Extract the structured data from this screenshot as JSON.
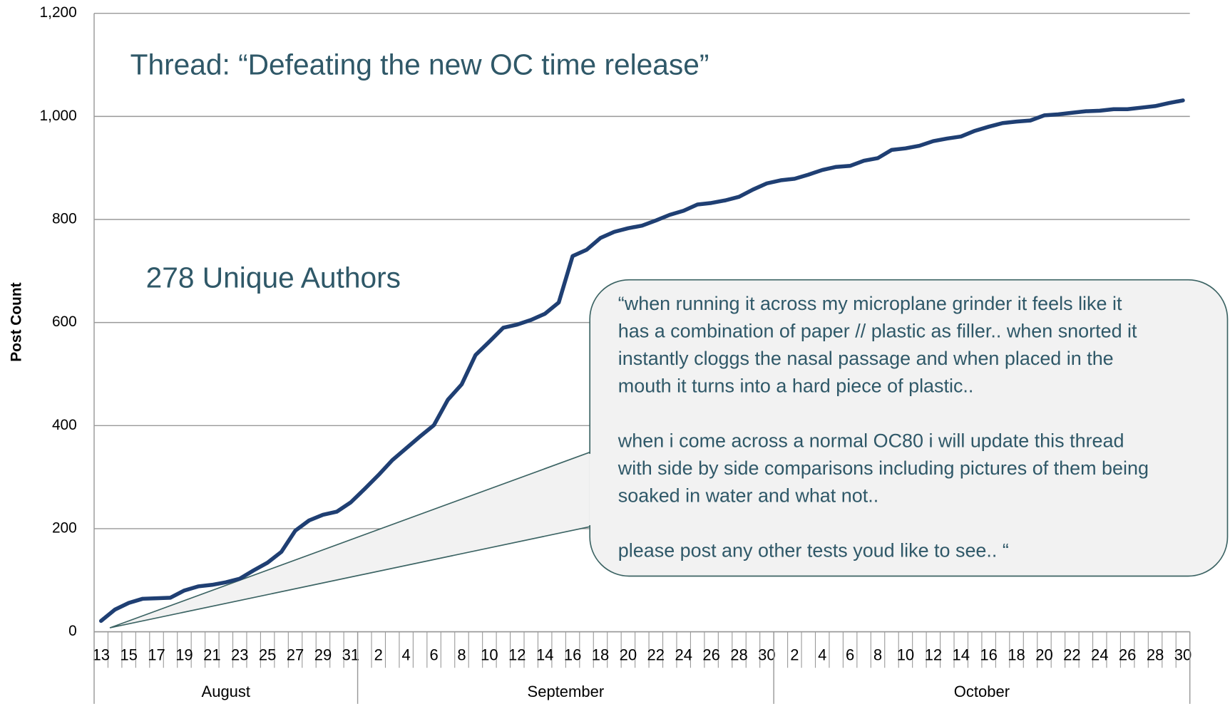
{
  "chart_data": {
    "type": "line",
    "title": "Thread: “Defeating the new OC time release”",
    "y_label": "Post Count",
    "annotations": [
      "278 Unique Authors"
    ],
    "callout": [
      [
        "“when running it across my microplane grinder it feels like it",
        "has a combination of paper // plastic as filler.. when snorted it",
        "instantly cloggs the nasal passage and when placed in the",
        "mouth it turns into a hard piece of plastic.."
      ],
      [
        "when i come across a normal OC80 i will update this thread",
        "with side by side comparisons including pictures of them being",
        "soaked in water and what not.."
      ],
      [
        "please post any other tests youd like to see.. “"
      ]
    ],
    "months": [
      "August",
      "September",
      "October"
    ],
    "categories": [
      "13",
      null,
      "15",
      null,
      "17",
      null,
      "19",
      null,
      "21",
      null,
      "23",
      null,
      "25",
      null,
      "27",
      null,
      "29",
      null,
      "31",
      null,
      "2",
      null,
      "4",
      null,
      "6",
      null,
      "8",
      null,
      "10",
      null,
      "12",
      null,
      "14",
      null,
      "16",
      null,
      "18",
      null,
      "20",
      null,
      "22",
      null,
      "24",
      null,
      "26",
      null,
      "28",
      null,
      "30",
      null,
      "2",
      null,
      "4",
      null,
      "6",
      null,
      "8",
      null,
      "10",
      null,
      "12",
      null,
      "14",
      null,
      "16",
      null,
      "18",
      null,
      "20",
      null,
      "22",
      null,
      "24",
      null,
      "26",
      null,
      "28",
      null,
      "30"
    ],
    "values": [
      21,
      43,
      56,
      64,
      65,
      66,
      80,
      88,
      91,
      96,
      103,
      119,
      134,
      155,
      196,
      216,
      227,
      233,
      251,
      277,
      304,
      333,
      356,
      379,
      401,
      450,
      480,
      537,
      563,
      590,
      596,
      605,
      617,
      639,
      729,
      741,
      764,
      776,
      783,
      788,
      798,
      809,
      817,
      829,
      832,
      837,
      844,
      858,
      870,
      876,
      879,
      887,
      896,
      902,
      904,
      914,
      919,
      935,
      938,
      943,
      952,
      957,
      961,
      972,
      980,
      987,
      990,
      992,
      1002,
      1004,
      1007,
      1010,
      1011,
      1014,
      1014,
      1017,
      1020,
      1026,
      1031
    ],
    "color": "#1f3f73",
    "ylim": [
      0,
      1200
    ],
    "yticks": [
      0,
      200,
      400,
      600,
      800,
      {
        "value": 1000,
        "label": "1,000"
      },
      {
        "value": 1200,
        "label": "1,200"
      }
    ],
    "grid": true
  }
}
